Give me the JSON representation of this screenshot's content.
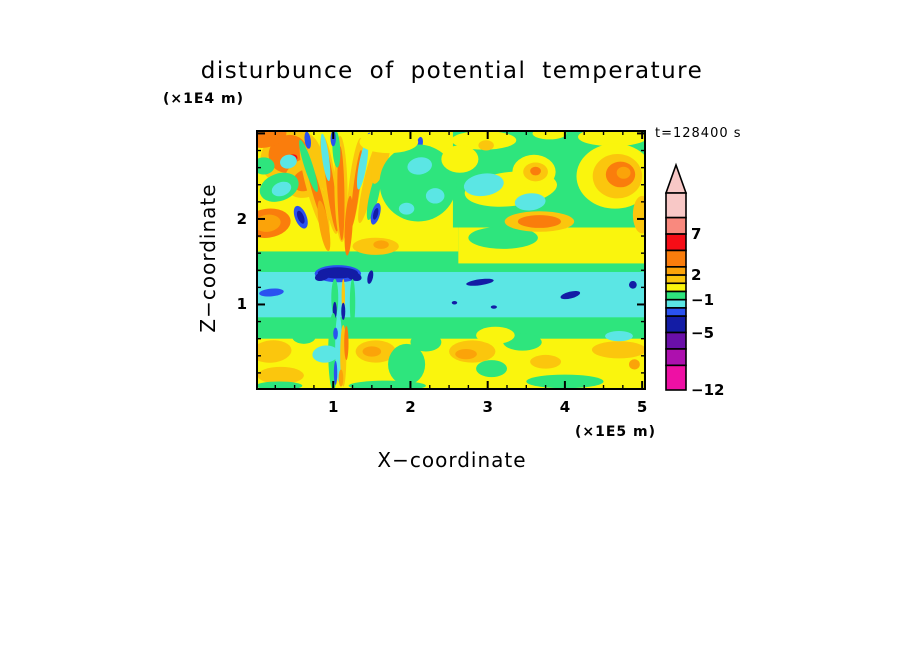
{
  "figure": {
    "title": "disturbunce of potential temperature",
    "z_axis_unit": "(×1E4 m)",
    "x_axis_unit": "(×1E5 m)",
    "time_label": "t=128400 s",
    "x_axis_label": "X−coordinate",
    "z_axis_label": "Z−coordinate"
  },
  "chart_data": {
    "type": "heatmap",
    "subtype": "filled_contour",
    "title": "disturbunce of potential temperature",
    "xlabel": "X−coordinate",
    "ylabel": "Z−coordinate",
    "x_unit": "×1E5 m",
    "y_unit": "×1E4 m",
    "time_annotation": "t=128400 s",
    "xlim": [
      0,
      5.05
    ],
    "ylim": [
      0,
      3.04
    ],
    "x_major_ticks": [
      1,
      2,
      3,
      4,
      5
    ],
    "x_minor_step": 0.25,
    "y_major_ticks": [
      1,
      2
    ],
    "y_minor_step": 0.2,
    "grid": false,
    "contour_levels": [
      -12,
      -9,
      -7,
      -5,
      -3,
      -2,
      -1,
      0,
      1,
      2,
      3,
      5,
      7,
      9,
      12
    ],
    "palette": {
      "pp": "#F8C8C6",
      "sa": "#F9897E",
      "re": "#F60D16",
      "or": "#FA7D0C",
      "am": "#FBA309",
      "go": "#FBC60D",
      "ye": "#FAF50D",
      "gr": "#2EE57D",
      "cy": "#5BE6E4",
      "bl": "#2A52F0",
      "na": "#131CA5",
      "pu": "#6A0FA8",
      "ma": "#AD10AE",
      "dp": "#EE10A4"
    },
    "colorbar": {
      "orientation": "vertical",
      "position": "right",
      "value_range": [
        -12,
        12
      ],
      "overflow_arrow": "top",
      "overflow_arrow_color": "pp",
      "labels": [
        {
          "value": 7,
          "text": "7"
        },
        {
          "value": 2,
          "text": "2"
        },
        {
          "value": -1,
          "text": "−1"
        },
        {
          "value": -5,
          "text": "−5"
        },
        {
          "value": -12,
          "text": "−12"
        }
      ],
      "segments": [
        [
          "pp",
          9,
          12
        ],
        [
          "sa",
          7,
          9
        ],
        [
          "re",
          5,
          7
        ],
        [
          "or",
          3,
          5
        ],
        [
          "am",
          2,
          3
        ],
        [
          "go",
          1,
          2
        ],
        [
          "ye",
          0,
          1
        ],
        [
          "gr",
          -1,
          0
        ],
        [
          "cy",
          -2,
          -1
        ],
        [
          "bl",
          -3,
          -2
        ],
        [
          "na",
          -5,
          -3
        ],
        [
          "pu",
          -7,
          -5
        ],
        [
          "ma",
          -9,
          -7
        ],
        [
          "dp",
          -12,
          -9
        ]
      ]
    },
    "field": {
      "background": "gr",
      "band_fields": [
        "color",
        "x0",
        "z0",
        "x1",
        "z1"
      ],
      "bands": [
        [
          "ye",
          0,
          0,
          5.05,
          0.66
        ],
        [
          "gr",
          0,
          0.6,
          5.05,
          0.9
        ],
        [
          "cy",
          0,
          0.85,
          5.05,
          1.44
        ],
        [
          "gr",
          0,
          1.38,
          5.05,
          1.66
        ],
        [
          "ye",
          0,
          1.62,
          2.62,
          3.04
        ],
        [
          "ye",
          2.62,
          1.48,
          5.05,
          1.9
        ],
        [
          "gr",
          2.55,
          1.9,
          5.05,
          3.04
        ]
      ],
      "blob_fields": [
        "color",
        "x",
        "z",
        "rx",
        "rz",
        "rot_deg"
      ],
      "blobs": [
        [
          "go",
          0.45,
          2.72,
          0.4,
          0.32,
          -25
        ],
        [
          "or",
          0.42,
          2.76,
          0.26,
          0.22,
          -25
        ],
        [
          "re",
          0.46,
          2.7,
          0.08,
          0.05,
          -25
        ],
        [
          "or",
          0.15,
          2.96,
          0.25,
          0.12,
          -15
        ],
        [
          "go",
          0.65,
          2.48,
          0.3,
          0.22,
          -30
        ],
        [
          "or",
          0.63,
          2.45,
          0.16,
          0.12,
          -30
        ],
        [
          "or",
          0.15,
          1.95,
          0.3,
          0.17,
          -8
        ],
        [
          "am",
          0.15,
          1.95,
          0.17,
          0.1,
          -8
        ],
        [
          "gr",
          0.3,
          2.37,
          0.26,
          0.16,
          -20
        ],
        [
          "cy",
          0.33,
          2.35,
          0.13,
          0.08,
          -20
        ],
        [
          "gr",
          0.1,
          2.62,
          0.14,
          0.1,
          0
        ],
        [
          "cy",
          0.42,
          2.67,
          0.11,
          0.08,
          -15
        ],
        [
          "gr",
          0.88,
          2.15,
          0.1,
          0.18,
          -10
        ],
        [
          "go",
          0.76,
          2.35,
          0.1,
          0.55,
          -16
        ],
        [
          "or",
          0.78,
          2.33,
          0.055,
          0.45,
          -16
        ],
        [
          "go",
          0.95,
          2.4,
          0.09,
          0.58,
          -8
        ],
        [
          "or",
          0.97,
          2.35,
          0.05,
          0.5,
          -8
        ],
        [
          "go",
          1.1,
          2.35,
          0.085,
          0.62,
          -1
        ],
        [
          "or",
          1.1,
          2.3,
          0.045,
          0.55,
          -1
        ],
        [
          "go",
          1.28,
          2.4,
          0.075,
          0.55,
          7
        ],
        [
          "or",
          1.3,
          2.36,
          0.04,
          0.45,
          7
        ],
        [
          "go",
          1.46,
          2.42,
          0.07,
          0.48,
          13
        ],
        [
          "am",
          0.88,
          1.92,
          0.06,
          0.3,
          -10
        ],
        [
          "or",
          1.2,
          1.92,
          0.05,
          0.35,
          3
        ],
        [
          "gr",
          0.68,
          2.62,
          0.055,
          0.32,
          -18
        ],
        [
          "cy",
          0.9,
          2.72,
          0.045,
          0.28,
          -8
        ],
        [
          "gr",
          1.04,
          2.82,
          0.05,
          0.22,
          -3
        ],
        [
          "cy",
          1.38,
          2.62,
          0.05,
          0.28,
          10
        ],
        [
          "gr",
          1.53,
          2.28,
          0.06,
          0.3,
          13
        ],
        [
          "go",
          1.62,
          2.7,
          0.09,
          0.3,
          16
        ],
        [
          "bl",
          0.58,
          2.02,
          0.075,
          0.14,
          -22
        ],
        [
          "na",
          0.58,
          2.02,
          0.04,
          0.08,
          -22
        ],
        [
          "bl",
          1.55,
          2.06,
          0.055,
          0.13,
          15
        ],
        [
          "na",
          1.55,
          2.06,
          0.03,
          0.07,
          15
        ],
        [
          "bl",
          0.67,
          2.92,
          0.04,
          0.1,
          -8
        ],
        [
          "bl",
          1.0,
          2.94,
          0.035,
          0.09,
          0
        ],
        [
          "bl",
          1.46,
          2.92,
          0.035,
          0.09,
          6
        ],
        [
          "bl",
          2.12,
          2.88,
          0.04,
          0.08,
          10
        ],
        [
          "gr",
          2.1,
          2.42,
          0.5,
          0.45,
          0
        ],
        [
          "ye",
          1.72,
          2.9,
          0.38,
          0.13,
          0
        ],
        [
          "cy",
          2.12,
          2.62,
          0.16,
          0.1,
          -10
        ],
        [
          "cy",
          2.32,
          2.27,
          0.12,
          0.09,
          0
        ],
        [
          "cy",
          1.95,
          2.12,
          0.1,
          0.07,
          0
        ],
        [
          "go",
          1.55,
          1.68,
          0.3,
          0.1,
          0
        ],
        [
          "am",
          1.62,
          1.7,
          0.1,
          0.05,
          0
        ],
        [
          "ye",
          2.95,
          2.92,
          0.42,
          0.11,
          0
        ],
        [
          "ye",
          4.62,
          2.96,
          0.45,
          0.11,
          0
        ],
        [
          "ye",
          3.8,
          3.0,
          0.22,
          0.07,
          0
        ],
        [
          "go",
          2.98,
          2.86,
          0.1,
          0.06,
          0
        ],
        [
          "ye",
          3.3,
          2.35,
          0.6,
          0.2,
          -6
        ],
        [
          "ye",
          2.64,
          2.7,
          0.24,
          0.16,
          0
        ],
        [
          "ye",
          4.65,
          2.5,
          0.5,
          0.38,
          0
        ],
        [
          "go",
          4.68,
          2.5,
          0.32,
          0.26,
          0
        ],
        [
          "or",
          4.72,
          2.52,
          0.19,
          0.15,
          0
        ],
        [
          "am",
          4.76,
          2.54,
          0.09,
          0.07,
          0
        ],
        [
          "ye",
          3.6,
          2.55,
          0.28,
          0.2,
          0
        ],
        [
          "go",
          3.62,
          2.55,
          0.16,
          0.11,
          0
        ],
        [
          "or",
          3.62,
          2.56,
          0.07,
          0.05,
          0
        ],
        [
          "cy",
          2.95,
          2.4,
          0.26,
          0.13,
          -8
        ],
        [
          "cy",
          3.55,
          2.2,
          0.2,
          0.1,
          -5
        ],
        [
          "gr",
          3.2,
          1.78,
          0.45,
          0.13,
          0
        ],
        [
          "go",
          3.67,
          1.97,
          0.45,
          0.12,
          0
        ],
        [
          "or",
          3.67,
          1.97,
          0.28,
          0.075,
          0
        ],
        [
          "go",
          5.0,
          2.05,
          0.12,
          0.22,
          0
        ],
        [
          "bl",
          1.06,
          1.36,
          0.3,
          0.1,
          0
        ],
        [
          "na",
          1.06,
          1.37,
          0.26,
          0.065,
          0
        ],
        [
          "na",
          0.86,
          1.33,
          0.1,
          0.05,
          -18
        ],
        [
          "na",
          1.27,
          1.33,
          0.1,
          0.05,
          18
        ],
        [
          "na",
          1.48,
          1.32,
          0.035,
          0.08,
          12
        ],
        [
          "bl",
          0.2,
          1.14,
          0.16,
          0.045,
          -5
        ],
        [
          "na",
          2.9,
          1.26,
          0.18,
          0.035,
          -8
        ],
        [
          "na",
          4.07,
          1.11,
          0.13,
          0.04,
          -14
        ],
        [
          "na",
          4.88,
          1.23,
          0.05,
          0.045,
          -35
        ],
        [
          "na",
          2.57,
          1.02,
          0.035,
          0.02,
          0
        ],
        [
          "na",
          3.08,
          0.97,
          0.04,
          0.02,
          0
        ],
        [
          "gr",
          1.02,
          1.08,
          0.045,
          0.22,
          0
        ],
        [
          "gr",
          1.25,
          1.02,
          0.035,
          0.28,
          0
        ],
        [
          "go",
          1.13,
          1.1,
          0.022,
          0.2,
          0
        ],
        [
          "na",
          1.02,
          0.93,
          0.026,
          0.1,
          0
        ],
        [
          "na",
          1.13,
          0.92,
          0.026,
          0.1,
          0
        ],
        [
          "gr",
          1.0,
          0.45,
          0.065,
          0.45,
          0
        ],
        [
          "cy",
          1.07,
          0.5,
          0.045,
          0.4,
          0
        ],
        [
          "go",
          1.13,
          0.4,
          0.04,
          0.36,
          0
        ],
        [
          "bl",
          1.03,
          0.2,
          0.022,
          0.14,
          0
        ],
        [
          "or",
          1.17,
          0.55,
          0.028,
          0.2,
          0
        ],
        [
          "am",
          1.1,
          0.14,
          0.03,
          0.1,
          0
        ],
        [
          "bl",
          1.03,
          0.66,
          0.03,
          0.07,
          0
        ],
        [
          "go",
          0.2,
          0.45,
          0.26,
          0.13,
          -5
        ],
        [
          "go",
          0.32,
          0.17,
          0.3,
          0.1,
          0
        ],
        [
          "cy",
          0.9,
          0.42,
          0.17,
          0.1,
          -5
        ],
        [
          "go",
          1.55,
          0.45,
          0.26,
          0.13,
          0
        ],
        [
          "am",
          1.5,
          0.45,
          0.12,
          0.06,
          0
        ],
        [
          "gr",
          1.95,
          0.3,
          0.24,
          0.24,
          0
        ],
        [
          "gr",
          2.2,
          0.56,
          0.2,
          0.11,
          0
        ],
        [
          "go",
          2.8,
          0.45,
          0.3,
          0.13,
          0
        ],
        [
          "am",
          2.72,
          0.42,
          0.14,
          0.06,
          0
        ],
        [
          "gr",
          3.45,
          0.56,
          0.25,
          0.1,
          0
        ],
        [
          "gr",
          3.05,
          0.25,
          0.2,
          0.1,
          0
        ],
        [
          "go",
          4.7,
          0.47,
          0.35,
          0.1,
          0
        ],
        [
          "am",
          4.9,
          0.3,
          0.07,
          0.06,
          0
        ],
        [
          "gr",
          4.0,
          0.1,
          0.5,
          0.08,
          0
        ],
        [
          "gr",
          0.62,
          0.62,
          0.15,
          0.08,
          0
        ],
        [
          "cy",
          4.7,
          0.63,
          0.18,
          0.06,
          0
        ],
        [
          "go",
          3.75,
          0.33,
          0.2,
          0.08,
          0
        ],
        [
          "gr",
          1.7,
          0.05,
          0.5,
          0.06,
          0
        ],
        [
          "gr",
          0.3,
          0.05,
          0.3,
          0.05,
          0
        ],
        [
          "ye",
          3.1,
          0.64,
          0.25,
          0.1,
          0
        ]
      ]
    }
  }
}
